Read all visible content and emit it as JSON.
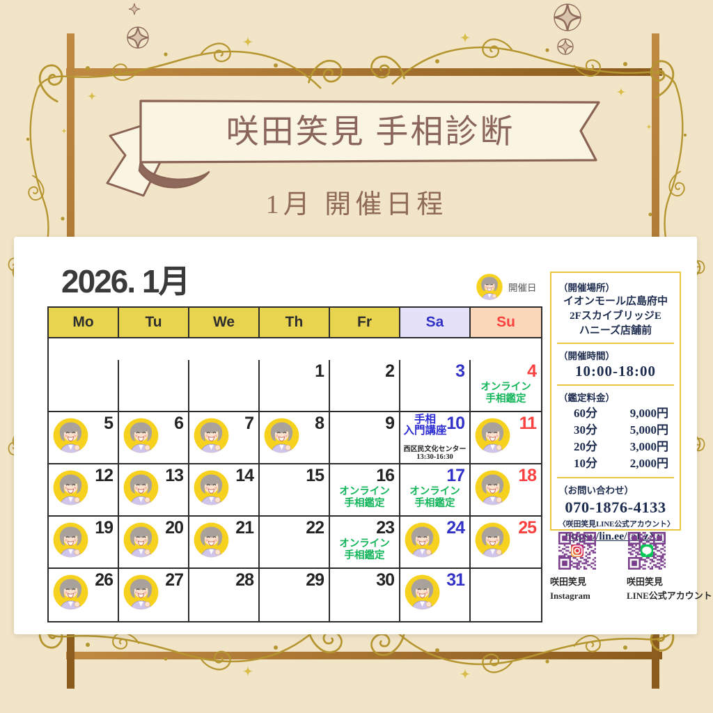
{
  "banner": {
    "title": "咲田笑見 手相診断",
    "subtitle": "1月 開催日程"
  },
  "calendar": {
    "year_month": "2026. 1月",
    "legend_label": "開催日",
    "weekday_headers": [
      "Mo",
      "Tu",
      "We",
      "Th",
      "Fr",
      "Sa",
      "Su"
    ],
    "weeks": [
      [
        null,
        null,
        null,
        {
          "date": 1
        },
        {
          "date": 2
        },
        {
          "date": 3
        },
        {
          "date": 4,
          "event": {
            "lines": [
              "オンライン",
              "手相鑑定"
            ],
            "style": "green"
          }
        }
      ],
      [
        {
          "date": 5,
          "avatar": true
        },
        {
          "date": 6,
          "avatar": true
        },
        {
          "date": 7,
          "avatar": true
        },
        {
          "date": 8,
          "avatar": true
        },
        {
          "date": 9
        },
        {
          "date": 10,
          "event": {
            "lines": [
              "手相",
              "入門講座"
            ],
            "style": "blue"
          },
          "notes": [
            "西区民文化センター",
            "13:30-16:30"
          ]
        },
        {
          "date": 11,
          "avatar": true
        }
      ],
      [
        {
          "date": 12,
          "avatar": true
        },
        {
          "date": 13,
          "avatar": true
        },
        {
          "date": 14,
          "avatar": true
        },
        {
          "date": 15
        },
        {
          "date": 16,
          "event": {
            "lines": [
              "オンライン",
              "手相鑑定"
            ],
            "style": "green"
          }
        },
        {
          "date": 17,
          "event": {
            "lines": [
              "オンライン",
              "手相鑑定"
            ],
            "style": "green"
          }
        },
        {
          "date": 18,
          "avatar": true
        }
      ],
      [
        {
          "date": 19,
          "avatar": true
        },
        {
          "date": 20,
          "avatar": true
        },
        {
          "date": 21,
          "avatar": true
        },
        {
          "date": 22
        },
        {
          "date": 23,
          "event": {
            "lines": [
              "オンライン",
              "手相鑑定"
            ],
            "style": "green"
          }
        },
        {
          "date": 24,
          "avatar": true
        },
        {
          "date": 25,
          "avatar": true
        }
      ],
      [
        {
          "date": 26,
          "avatar": true
        },
        {
          "date": 27,
          "avatar": true
        },
        {
          "date": 28
        },
        {
          "date": 29
        },
        {
          "date": 30
        },
        {
          "date": 31,
          "avatar": true
        },
        null
      ]
    ]
  },
  "info_panel": {
    "location": {
      "heading": "（開催場所）",
      "lines": [
        "イオンモール広島府中",
        "2FスカイブリッジE",
        "ハニーズ店舗前"
      ]
    },
    "hours": {
      "heading": "（開催時間）",
      "value": "10:00-18:00"
    },
    "pricing": {
      "heading": "（鑑定料金）",
      "rows": [
        {
          "duration": "60分",
          "price": "9,000円"
        },
        {
          "duration": "30分",
          "price": "5,000円"
        },
        {
          "duration": "20分",
          "price": "3,000円"
        },
        {
          "duration": "10分",
          "price": "2,000円"
        }
      ]
    },
    "contact": {
      "heading": "（お問い合わせ）",
      "phone": "070-1876-4133",
      "account_note": "〈咲田笑見LINE公式アカウント〉",
      "url": "https://lin.ee/taLzXxj"
    }
  },
  "qr_codes": [
    {
      "icon": "instagram-icon",
      "label_lines": [
        "咲田笑見",
        "Instagram"
      ]
    },
    {
      "icon": "line-icon",
      "label_lines": [
        "咲田笑見",
        "LINE公式アカウント"
      ]
    }
  ],
  "colors": {
    "background": "#f2e4c7",
    "frame_brown": "#a8762c",
    "header_yellow": "#e8d44e",
    "saturday_bg": "#e5e1f8",
    "sunday_bg": "#fbd7ba",
    "saturday_text": "#3232c8",
    "sunday_text": "#fb4040",
    "event_green": "#12b55a",
    "event_blue": "#2b2bd4",
    "panel_border": "#e9c642",
    "panel_text": "#1d2c4e",
    "qr_purple": "#7a3e8c",
    "ribbon_text": "#8a655a"
  }
}
